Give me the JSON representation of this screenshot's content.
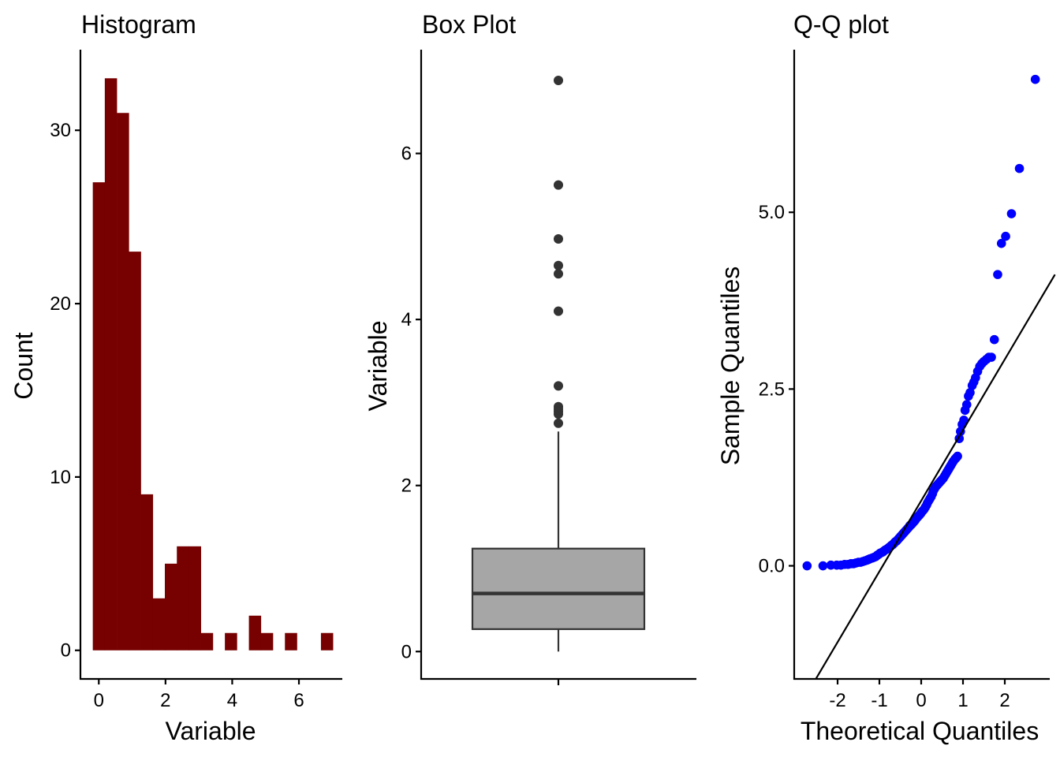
{
  "chart_data": [
    {
      "type": "bar",
      "subtype": "histogram",
      "title": "Histogram",
      "xlabel": "Variable",
      "ylabel": "Count",
      "fill_color": "#770000",
      "bin_start": -0.18,
      "bin_width": 0.36,
      "counts": [
        27,
        33,
        31,
        23,
        9,
        3,
        5,
        6,
        6,
        1,
        0,
        1,
        0,
        2,
        1,
        0,
        1,
        0,
        0,
        1
      ],
      "xlim": [
        -0.55,
        7.3
      ],
      "ylim": [
        -1.65,
        34.65
      ],
      "xticks": [
        0,
        2,
        4,
        6
      ],
      "xtick_labels": [
        "0",
        "2",
        "4",
        "6"
      ],
      "yticks": [
        0,
        10,
        20,
        30
      ],
      "ytick_labels": [
        "0",
        "10",
        "20",
        "30"
      ],
      "grid": false
    },
    {
      "type": "box",
      "title": "Box Plot",
      "xlabel": "",
      "ylabel": "Variable",
      "fill_color": "#A6A6A6",
      "line_color": "#333333",
      "stats": {
        "lower_whisker": 0.0,
        "q1": 0.27,
        "median": 0.7,
        "q3": 1.24,
        "upper_whisker": 2.65
      },
      "outliers": [
        2.75,
        2.86,
        2.89,
        2.92,
        2.95,
        3.2,
        4.1,
        4.55,
        4.65,
        4.97,
        5.62,
        6.88
      ],
      "ylim": [
        -0.33,
        7.25
      ],
      "yticks": [
        0,
        2,
        4,
        6
      ],
      "ytick_labels": [
        "0",
        "2",
        "4",
        "6"
      ],
      "grid": false
    },
    {
      "type": "scatter",
      "subtype": "qq",
      "title": "Q-Q plot",
      "xlabel": "Theoretical Quantiles",
      "ylabel": "Sample Quantiles",
      "point_color": "#0000FF",
      "line_color": "#000000",
      "reference_line": {
        "slope": 1.0,
        "intercept": 0.92
      },
      "points": [
        [
          -2.73,
          0.0
        ],
        [
          -2.35,
          0.0
        ],
        [
          -2.16,
          0.01
        ],
        [
          -2.02,
          0.01
        ],
        [
          -1.92,
          0.01
        ],
        [
          -1.83,
          0.02
        ],
        [
          -1.75,
          0.02
        ],
        [
          -1.68,
          0.03
        ],
        [
          -1.62,
          0.03
        ],
        [
          -1.56,
          0.04
        ],
        [
          -1.5,
          0.05
        ],
        [
          -1.45,
          0.05
        ],
        [
          -1.4,
          0.06
        ],
        [
          -1.35,
          0.07
        ],
        [
          -1.3,
          0.08
        ],
        [
          -1.26,
          0.09
        ],
        [
          -1.22,
          0.1
        ],
        [
          -1.17,
          0.11
        ],
        [
          -1.13,
          0.12
        ],
        [
          -1.09,
          0.13
        ],
        [
          -1.05,
          0.15
        ],
        [
          -1.02,
          0.16
        ],
        [
          -0.98,
          0.18
        ],
        [
          -0.94,
          0.19
        ],
        [
          -0.91,
          0.2
        ],
        [
          -0.87,
          0.22
        ],
        [
          -0.84,
          0.23
        ],
        [
          -0.81,
          0.24
        ],
        [
          -0.77,
          0.26
        ],
        [
          -0.74,
          0.27
        ],
        [
          -0.71,
          0.29
        ],
        [
          -0.68,
          0.3
        ],
        [
          -0.65,
          0.32
        ],
        [
          -0.62,
          0.34
        ],
        [
          -0.59,
          0.35
        ],
        [
          -0.56,
          0.37
        ],
        [
          -0.53,
          0.39
        ],
        [
          -0.5,
          0.41
        ],
        [
          -0.47,
          0.43
        ],
        [
          -0.44,
          0.45
        ],
        [
          -0.41,
          0.47
        ],
        [
          -0.38,
          0.49
        ],
        [
          -0.35,
          0.51
        ],
        [
          -0.32,
          0.53
        ],
        [
          -0.29,
          0.55
        ],
        [
          -0.27,
          0.57
        ],
        [
          -0.24,
          0.58
        ],
        [
          -0.21,
          0.6
        ],
        [
          -0.18,
          0.62
        ],
        [
          -0.15,
          0.64
        ],
        [
          -0.13,
          0.66
        ],
        [
          -0.1,
          0.68
        ],
        [
          -0.07,
          0.7
        ],
        [
          -0.04,
          0.72
        ],
        [
          -0.01,
          0.74
        ],
        [
          0.01,
          0.76
        ],
        [
          0.04,
          0.78
        ],
        [
          0.07,
          0.8
        ],
        [
          0.1,
          0.83
        ],
        [
          0.13,
          0.86
        ],
        [
          0.15,
          0.89
        ],
        [
          0.18,
          0.92
        ],
        [
          0.21,
          0.95
        ],
        [
          0.24,
          0.98
        ],
        [
          0.27,
          1.02
        ],
        [
          0.29,
          1.06
        ],
        [
          0.32,
          1.09
        ],
        [
          0.35,
          1.12
        ],
        [
          0.38,
          1.14
        ],
        [
          0.41,
          1.16
        ],
        [
          0.44,
          1.18
        ],
        [
          0.47,
          1.2
        ],
        [
          0.5,
          1.22
        ],
        [
          0.53,
          1.24
        ],
        [
          0.56,
          1.27
        ],
        [
          0.59,
          1.3
        ],
        [
          0.62,
          1.33
        ],
        [
          0.65,
          1.36
        ],
        [
          0.68,
          1.39
        ],
        [
          0.71,
          1.42
        ],
        [
          0.74,
          1.45
        ],
        [
          0.77,
          1.48
        ],
        [
          0.81,
          1.51
        ],
        [
          0.84,
          1.53
        ],
        [
          0.87,
          1.55
        ],
        [
          0.91,
          1.8
        ],
        [
          0.94,
          1.9
        ],
        [
          0.98,
          2.0
        ],
        [
          1.02,
          2.06
        ],
        [
          1.05,
          2.2
        ],
        [
          1.09,
          2.28
        ],
        [
          1.13,
          2.4
        ],
        [
          1.17,
          2.45
        ],
        [
          1.22,
          2.55
        ],
        [
          1.26,
          2.6
        ],
        [
          1.3,
          2.66
        ],
        [
          1.35,
          2.75
        ],
        [
          1.4,
          2.82
        ],
        [
          1.45,
          2.86
        ],
        [
          1.5,
          2.89
        ],
        [
          1.56,
          2.92
        ],
        [
          1.62,
          2.95
        ],
        [
          1.68,
          2.95
        ],
        [
          1.75,
          3.2
        ],
        [
          1.83,
          4.12
        ],
        [
          1.92,
          4.56
        ],
        [
          2.02,
          4.66
        ],
        [
          2.16,
          4.98
        ],
        [
          2.35,
          5.62
        ],
        [
          2.73,
          6.88
        ]
      ],
      "xlim": [
        -3.0,
        3.0
      ],
      "ylim": [
        -1.6,
        7.3
      ],
      "xticks": [
        -2,
        -1,
        0,
        1,
        2
      ],
      "xtick_labels": [
        "-2",
        "-1",
        "0",
        "1",
        "2"
      ],
      "yticks": [
        0.0,
        2.5,
        5.0
      ],
      "ytick_labels": [
        "0.0",
        "2.5",
        "5.0"
      ],
      "grid": false
    }
  ]
}
